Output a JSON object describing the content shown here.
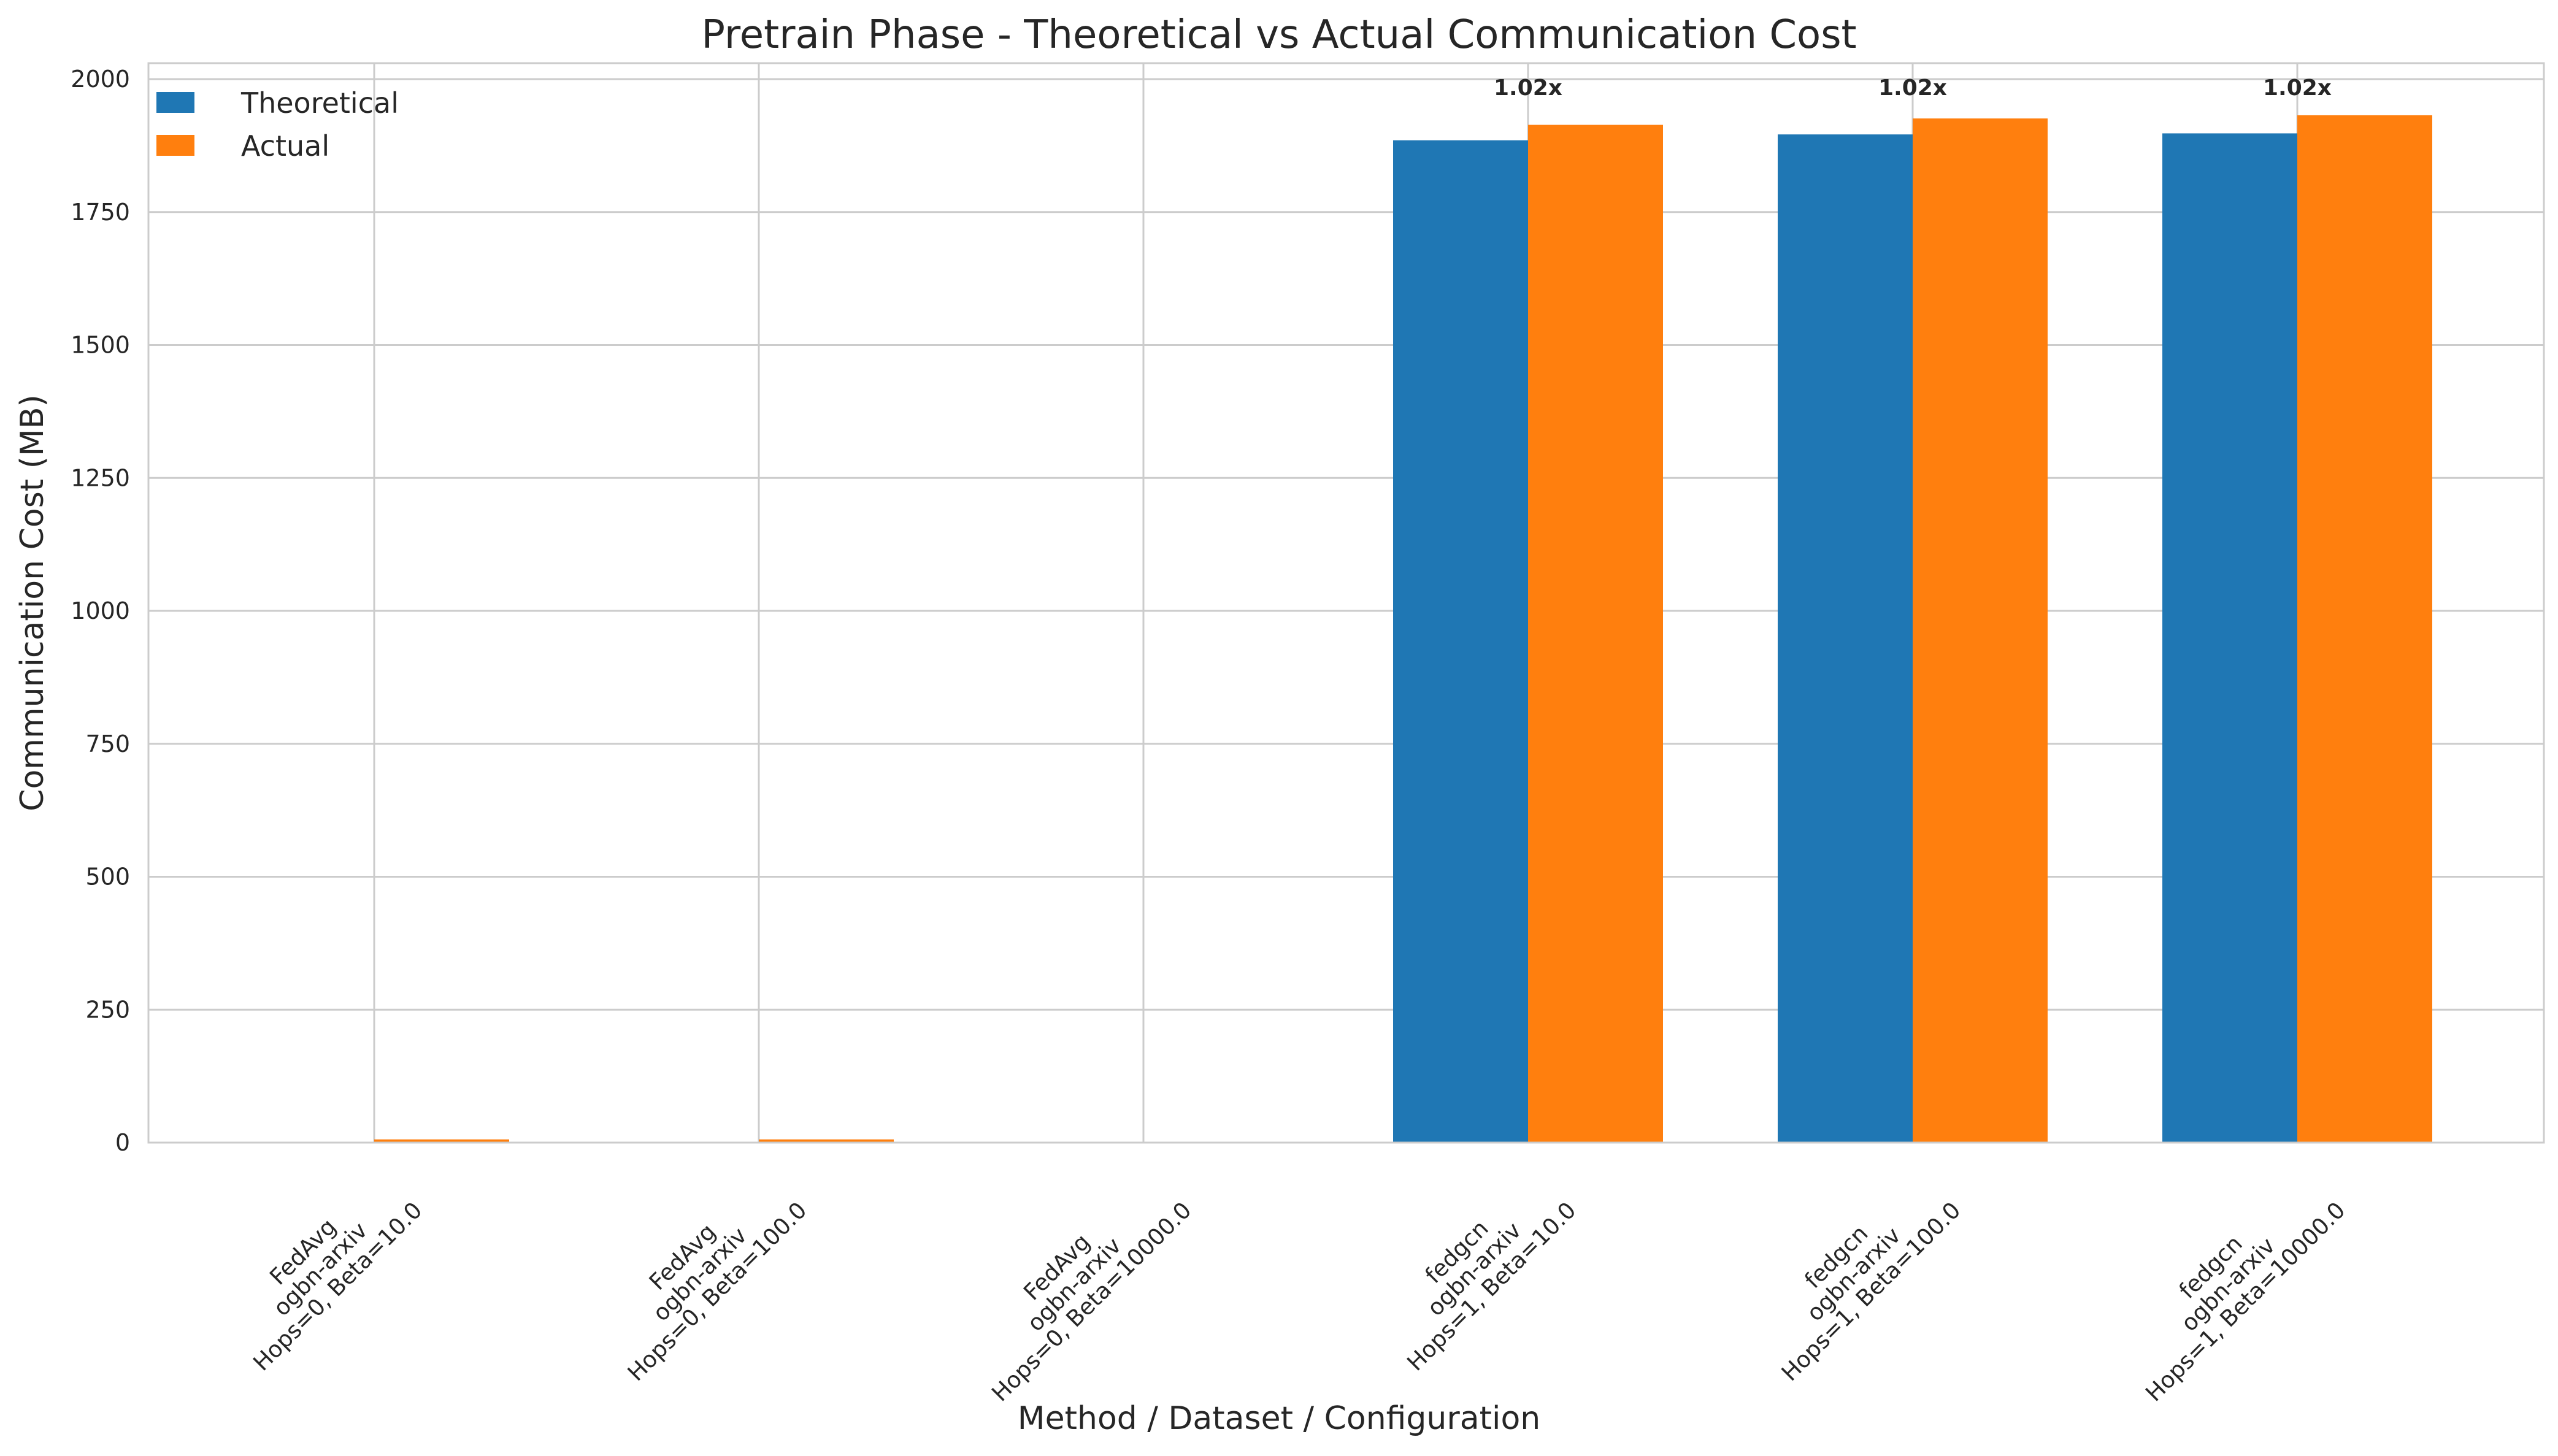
{
  "chart_data": {
    "type": "bar",
    "title": "Pretrain Phase - Theoretical vs Actual Communication Cost",
    "xlabel": "Method / Dataset / Configuration",
    "ylabel": "Communication Cost (MB)",
    "ylim": [
      0,
      2030
    ],
    "yticks": [
      0,
      250,
      500,
      750,
      1000,
      1250,
      1500,
      1750,
      2000
    ],
    "grid": true,
    "legend_position": "top-left",
    "categories": [
      [
        "FedAvg",
        "ogbn-arxiv",
        "Hops=0, Beta=10.0"
      ],
      [
        "FedAvg",
        "ogbn-arxiv",
        "Hops=0, Beta=100.0"
      ],
      [
        "FedAvg",
        "ogbn-arxiv",
        "Hops=0, Beta=10000.0"
      ],
      [
        "fedgcn",
        "ogbn-arxiv",
        "Hops=1, Beta=10.0"
      ],
      [
        "fedgcn",
        "ogbn-arxiv",
        "Hops=1, Beta=100.0"
      ],
      [
        "fedgcn",
        "ogbn-arxiv",
        "Hops=1, Beta=10000.0"
      ]
    ],
    "series": [
      {
        "name": "Theoretical",
        "color": "#1f77b4",
        "values": [
          0,
          0,
          0,
          1885,
          1896,
          1898
        ]
      },
      {
        "name": "Actual",
        "color": "#ff7f0e",
        "values": [
          6,
          6,
          0,
          1914,
          1926,
          1932
        ]
      }
    ],
    "annotations": [
      "",
      "",
      "",
      "1.02x",
      "1.02x",
      "1.02x"
    ]
  }
}
